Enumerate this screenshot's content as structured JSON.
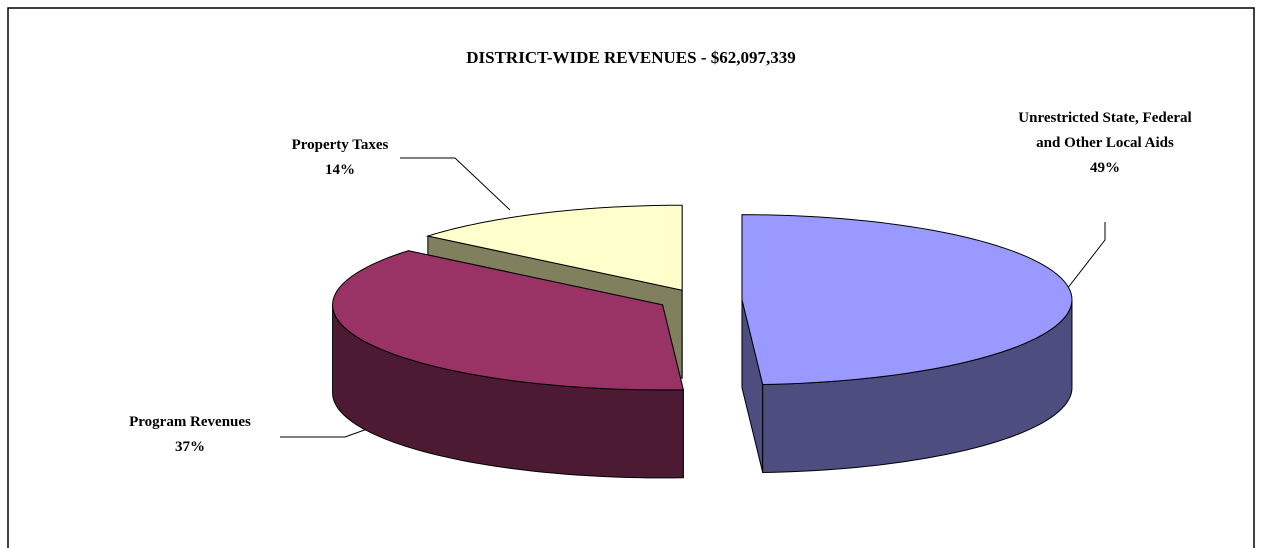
{
  "chart_data": {
    "type": "pie",
    "title": "DISTRICT-WIDE REVENUES - $62,097,339",
    "categories": [
      "Unrestricted State, Federal and Other Local Aids",
      "Program Revenues",
      "Property Taxes"
    ],
    "values": [
      49,
      37,
      14
    ],
    "value_labels": [
      "49%",
      "37%",
      "14%"
    ],
    "colors": [
      "#9999ff",
      "#993366",
      "#ffffcc"
    ],
    "side_colors": [
      "#4d4d80",
      "#4d1a33",
      "#80805f"
    ]
  }
}
